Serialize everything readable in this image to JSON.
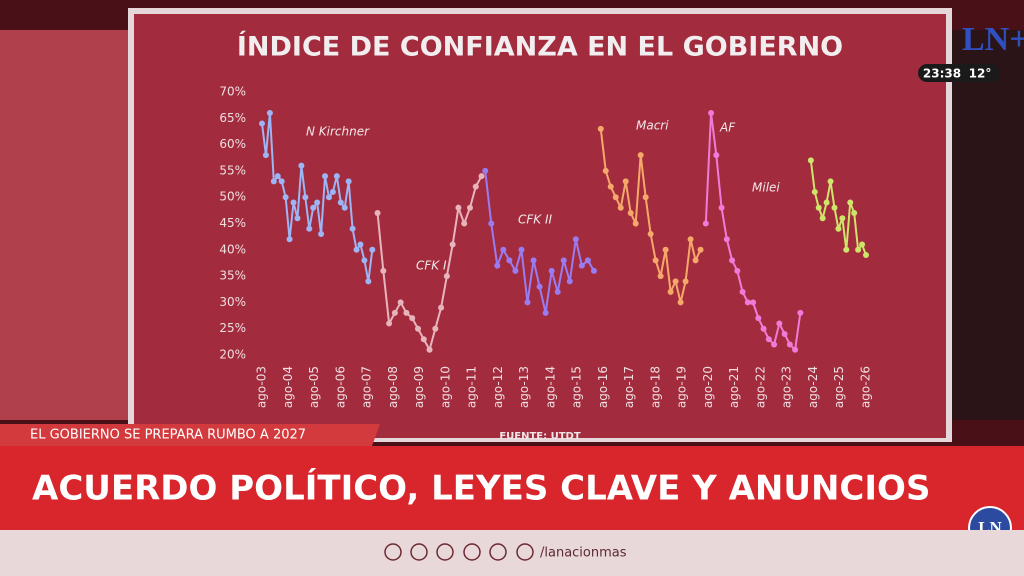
{
  "broadcast": {
    "logo": "LN+",
    "time": "23:38",
    "temperature": "12°",
    "kicker": "EL GOBIERNO SE PREPARA RUMBO A 2027",
    "headline": "ACUERDO POLÍTICO, LEYES CLAVE Y ANUNCIOS",
    "social": "/lanacionmas",
    "badge": "LN"
  },
  "chart_data": {
    "type": "line",
    "title": "ÍNDICE DE CONFIANZA EN EL GOBIERNO",
    "source": "FUENTE: UTDT",
    "xlim": [
      2002.6,
      2026.5
    ],
    "xticks": [
      {
        "value": 2003,
        "label": "ago-03"
      },
      {
        "value": 2004,
        "label": "ago-04"
      },
      {
        "value": 2005,
        "label": "ago-05"
      },
      {
        "value": 2006,
        "label": "ago-06"
      },
      {
        "value": 2007,
        "label": "ago-07"
      },
      {
        "value": 2008,
        "label": "ago-08"
      },
      {
        "value": 2009,
        "label": "ago-09"
      },
      {
        "value": 2010,
        "label": "ago-10"
      },
      {
        "value": 2011,
        "label": "ago-11"
      },
      {
        "value": 2012,
        "label": "ago-12"
      },
      {
        "value": 2013,
        "label": "ago-13"
      },
      {
        "value": 2014,
        "label": "ago-14"
      },
      {
        "value": 2015,
        "label": "ago-15"
      },
      {
        "value": 2016,
        "label": "ago-16"
      },
      {
        "value": 2017,
        "label": "ago-17"
      },
      {
        "value": 2018,
        "label": "ago-18"
      },
      {
        "value": 2019,
        "label": "ago-19"
      },
      {
        "value": 2020,
        "label": "ago-20"
      },
      {
        "value": 2021,
        "label": "ago-21"
      },
      {
        "value": 2022,
        "label": "ago-22"
      },
      {
        "value": 2023,
        "label": "ago-23"
      },
      {
        "value": 2024,
        "label": "ago-24"
      },
      {
        "value": 2025,
        "label": "ago-25"
      },
      {
        "value": 2026,
        "label": "ago-26"
      }
    ],
    "ylim": [
      20,
      70
    ],
    "yticks": [
      {
        "value": 20,
        "label": "20%"
      },
      {
        "value": 25,
        "label": "25%"
      },
      {
        "value": 30,
        "label": "30%"
      },
      {
        "value": 35,
        "label": "35%"
      },
      {
        "value": 40,
        "label": "40%"
      },
      {
        "value": 45,
        "label": "45%"
      },
      {
        "value": 50,
        "label": "50%"
      },
      {
        "value": 55,
        "label": "55%"
      },
      {
        "value": 60,
        "label": "60%"
      },
      {
        "value": 65,
        "label": "65%"
      },
      {
        "value": 70,
        "label": "70%"
      }
    ],
    "series": [
      {
        "name": "N Kirchner",
        "color": "#9db4f5",
        "x": [
          2003.0,
          2003.15,
          2003.3,
          2003.45,
          2003.6,
          2003.75,
          2003.9,
          2004.05,
          2004.2,
          2004.35,
          2004.5,
          2004.65,
          2004.8,
          2004.95,
          2005.1,
          2005.25,
          2005.4,
          2005.55,
          2005.7,
          2005.85,
          2006.0,
          2006.15,
          2006.3,
          2006.45,
          2006.6,
          2006.75,
          2006.9,
          2007.05,
          2007.2
        ],
        "values": [
          64,
          58,
          66,
          53,
          54,
          53,
          50,
          42,
          49,
          46,
          56,
          50,
          44,
          48,
          49,
          43,
          54,
          50,
          51,
          54,
          49,
          48,
          53,
          44,
          40,
          41,
          38,
          34,
          40
        ]
      },
      {
        "name": "CFK I",
        "color": "#e8b4bc",
        "x": [
          2007.4,
          2007.62,
          2007.84,
          2008.06,
          2008.28,
          2008.5,
          2008.72,
          2008.94,
          2009.16,
          2009.38,
          2009.6,
          2009.82,
          2010.04,
          2010.26,
          2010.48,
          2010.7,
          2010.92,
          2011.14,
          2011.36
        ],
        "values": [
          47,
          36,
          26,
          28,
          30,
          28,
          27,
          25,
          23,
          21,
          25,
          29,
          35,
          41,
          48,
          45,
          48,
          52,
          54
        ]
      },
      {
        "name": "CFK II",
        "color": "#9a7cf2",
        "x": [
          2011.5,
          2011.73,
          2011.96,
          2012.19,
          2012.42,
          2012.65,
          2012.88,
          2013.11,
          2013.34,
          2013.57,
          2013.8,
          2014.03,
          2014.26,
          2014.49,
          2014.72,
          2014.95,
          2015.18,
          2015.41,
          2015.64
        ],
        "values": [
          55,
          45,
          37,
          40,
          38,
          36,
          40,
          30,
          38,
          33,
          28,
          36,
          32,
          38,
          34,
          42,
          37,
          38,
          36
        ]
      },
      {
        "name": "Macri",
        "color": "#f6a86a",
        "x": [
          2015.9,
          2016.09,
          2016.28,
          2016.47,
          2016.66,
          2016.85,
          2017.04,
          2017.23,
          2017.42,
          2017.61,
          2017.8,
          2017.99,
          2018.18,
          2018.37,
          2018.56,
          2018.75,
          2018.94,
          2019.13,
          2019.32,
          2019.51,
          2019.7
        ],
        "values": [
          63,
          55,
          52,
          50,
          48,
          53,
          47,
          45,
          58,
          50,
          43,
          38,
          35,
          40,
          32,
          34,
          30,
          34,
          42,
          38,
          40
        ]
      },
      {
        "name": "AF",
        "color": "#f07ad8",
        "x": [
          2019.9,
          2020.1,
          2020.3,
          2020.5,
          2020.7,
          2020.9,
          2021.1,
          2021.3,
          2021.5,
          2021.7,
          2021.9,
          2022.1,
          2022.3,
          2022.5,
          2022.7,
          2022.9,
          2023.1,
          2023.3,
          2023.5
        ],
        "values": [
          45,
          66,
          58,
          48,
          42,
          38,
          36,
          32,
          30,
          30,
          27,
          25,
          23,
          22,
          26,
          24,
          22,
          21,
          28
        ]
      },
      {
        "name": "Milei",
        "color": "#cfe46a",
        "x": [
          2023.9,
          2024.05,
          2024.2,
          2024.35,
          2024.5,
          2024.65,
          2024.8,
          2024.95,
          2025.1,
          2025.25,
          2025.4,
          2025.55,
          2025.7,
          2025.85,
          2026.0
        ],
        "values": [
          57,
          51,
          48,
          46,
          49,
          53,
          48,
          44,
          46,
          40,
          49,
          47,
          40,
          41,
          39
        ]
      }
    ]
  }
}
